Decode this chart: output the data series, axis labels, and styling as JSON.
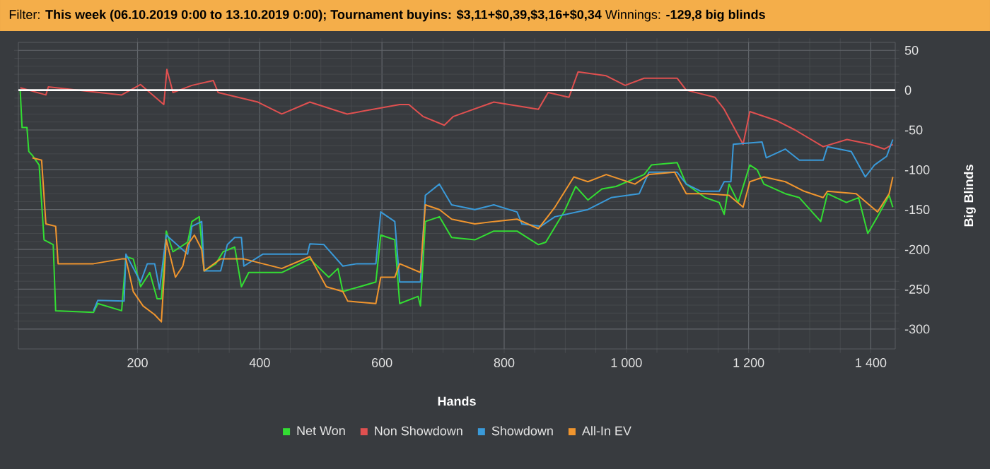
{
  "chart_data": {
    "type": "line",
    "title": "Filter: **This week (06.10.2019 0:00 to 13.10.2019 0:00); Tournament buyins: $3,11+$0,39,$3,16+$0,34** Winnings: **-129,8 big blinds**",
    "xlabel": "Hands",
    "ylabel": "Big Blinds",
    "xlim": [
      5,
      1440
    ],
    "ylim": [
      -325,
      60
    ],
    "xticks": [
      200,
      400,
      600,
      800,
      {
        "value": 1000,
        "label": "1 000"
      },
      {
        "value": 1200,
        "label": "1 200"
      },
      {
        "value": 1400,
        "label": "1 400"
      }
    ],
    "yticks": [
      50,
      0,
      -50,
      -100,
      -150,
      -200,
      -250,
      -300
    ],
    "grid": true,
    "legend": "bottom",
    "ref_lines": [
      {
        "axis": "y",
        "value": 0,
        "color": "#ffffff"
      }
    ],
    "series": [
      {
        "name": "Net Won",
        "color": "#33dd33",
        "x": [
          8,
          11,
          19,
          22,
          28,
          39,
          47,
          62,
          66,
          128,
          135,
          174,
          181,
          193,
          205,
          220,
          232,
          239,
          247,
          258,
          282,
          289,
          301,
          309,
          328,
          340,
          359,
          370,
          382,
          436,
          482,
          513,
          528,
          536,
          590,
          598,
          621,
          629,
          659,
          663,
          671,
          694,
          714,
          752,
          783,
          821,
          856,
          868,
          898,
          917,
          937,
          960,
          983,
          1029,
          1041,
          1083,
          1098,
          1129,
          1152,
          1160,
          1168,
          1183,
          1202,
          1214,
          1225,
          1260,
          1283,
          1318,
          1329,
          1360,
          1380,
          1395,
          1411,
          1430,
          1436
        ],
        "values": [
          0,
          -47,
          -47,
          -77,
          -82,
          -94,
          -188,
          -194,
          -277,
          -279,
          -268,
          -277,
          -209,
          -212,
          -247,
          -229,
          -262,
          -262,
          -177,
          -203,
          -191,
          -165,
          -159,
          -227,
          -218,
          -203,
          -197,
          -247,
          -229,
          -229,
          -212,
          -235,
          -224,
          -253,
          -241,
          -182,
          -188,
          -268,
          -259,
          -271,
          -165,
          -159,
          -185,
          -188,
          -177,
          -177,
          -194,
          -191,
          -153,
          -121,
          -138,
          -124,
          -121,
          -106,
          -94,
          -91,
          -118,
          -135,
          -141,
          -156,
          -118,
          -141,
          -94,
          -100,
          -118,
          -130,
          -135,
          -165,
          -130,
          -141,
          -135,
          -180,
          -159,
          -132,
          -147
        ]
      },
      {
        "name": "Non Showdown",
        "color": "#e05050",
        "x": [
          8,
          50,
          54,
          174,
          205,
          243,
          248,
          258,
          289,
          324,
          332,
          397,
          436,
          482,
          543,
          629,
          644,
          667,
          702,
          717,
          783,
          856,
          872,
          906,
          921,
          967,
          998,
          1029,
          1083,
          1098,
          1145,
          1160,
          1191,
          1202,
          1245,
          1276,
          1322,
          1361,
          1399,
          1422,
          1436
        ],
        "values": [
          3,
          -6,
          4,
          -6,
          7,
          -18,
          26,
          -3,
          6,
          12,
          -3,
          -15,
          -30,
          -15,
          -30,
          -18,
          -18,
          -33,
          -44,
          -33,
          -15,
          -24,
          -3,
          -9,
          23,
          18,
          6,
          15,
          15,
          0,
          -9,
          -24,
          -68,
          -27,
          -38,
          -50,
          -71,
          -62,
          -68,
          -74,
          -68
        ]
      },
      {
        "name": "Showdown",
        "color": "#3a9ad9",
        "x": [
          128,
          135,
          178,
          181,
          205,
          216,
          228,
          236,
          247,
          282,
          289,
          305,
          309,
          336,
          347,
          359,
          370,
          374,
          405,
          478,
          482,
          505,
          536,
          559,
          590,
          598,
          621,
          629,
          663,
          671,
          694,
          714,
          752,
          783,
          821,
          829,
          860,
          883,
          937,
          975,
          1021,
          1037,
          1083,
          1098,
          1122,
          1152,
          1160,
          1171,
          1175,
          1222,
          1229,
          1260,
          1283,
          1322,
          1329,
          1368,
          1391,
          1406,
          1426,
          1436
        ],
        "values": [
          -277,
          -264,
          -265,
          -206,
          -241,
          -218,
          -218,
          -250,
          -182,
          -206,
          -171,
          -165,
          -227,
          -227,
          -194,
          -185,
          -185,
          -221,
          -206,
          -206,
          -193,
          -194,
          -221,
          -218,
          -218,
          -153,
          -165,
          -241,
          -241,
          -132,
          -118,
          -144,
          -150,
          -144,
          -153,
          -168,
          -171,
          -159,
          -150,
          -135,
          -130,
          -103,
          -103,
          -118,
          -127,
          -127,
          -115,
          -115,
          -68,
          -65,
          -85,
          -74,
          -88,
          -88,
          -71,
          -77,
          -109,
          -94,
          -83,
          -62
        ]
      },
      {
        "name": "All-In EV",
        "color": "#f0952e",
        "x": [
          28,
          43,
          50,
          66,
          70,
          128,
          174,
          181,
          193,
          209,
          228,
          239,
          247,
          262,
          274,
          282,
          293,
          305,
          309,
          336,
          374,
          436,
          482,
          509,
          536,
          544,
          590,
          598,
          621,
          629,
          663,
          671,
          694,
          714,
          752,
          783,
          821,
          856,
          883,
          914,
          937,
          967,
          1014,
          1037,
          1079,
          1098,
          1129,
          1168,
          1191,
          1202,
          1225,
          1260,
          1291,
          1322,
          1329,
          1376,
          1411,
          1430,
          1436
        ],
        "values": [
          -85,
          -88,
          -168,
          -171,
          -218,
          -218,
          -212,
          -212,
          -253,
          -271,
          -282,
          -291,
          -188,
          -235,
          -221,
          -194,
          -182,
          -200,
          -227,
          -212,
          -212,
          -224,
          -209,
          -247,
          -253,
          -265,
          -268,
          -235,
          -235,
          -218,
          -229,
          -144,
          -150,
          -162,
          -168,
          -165,
          -162,
          -174,
          -147,
          -109,
          -115,
          -106,
          -118,
          -106,
          -103,
          -130,
          -130,
          -132,
          -147,
          -115,
          -109,
          -115,
          -127,
          -135,
          -127,
          -130,
          -153,
          -130,
          -109
        ]
      }
    ]
  }
}
